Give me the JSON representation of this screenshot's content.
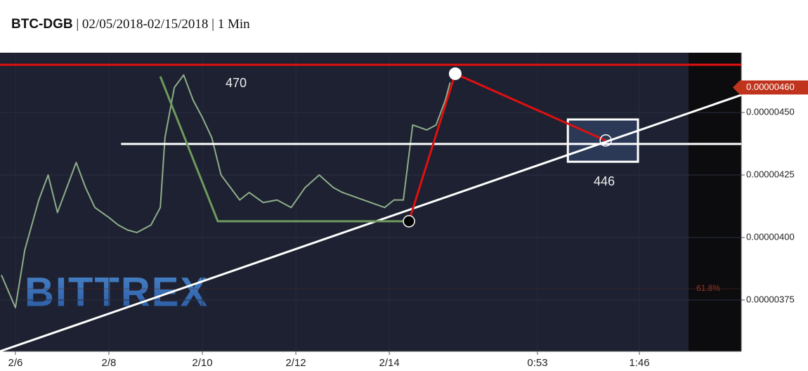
{
  "chart_data": {
    "type": "line",
    "title": {
      "symbol": "BTC-DGB",
      "range": "02/05/2018-02/15/2018",
      "interval": "1 Min"
    },
    "watermark": "BITTREX",
    "xlim": [
      5.67,
      21.53
    ],
    "xticks": [
      {
        "value": 6,
        "label": "2/6"
      },
      {
        "value": 8,
        "label": "2/8"
      },
      {
        "value": 10,
        "label": "2/10"
      },
      {
        "value": 12,
        "label": "2/12"
      },
      {
        "value": 14,
        "label": "2/14"
      },
      {
        "value": 17.17,
        "label": "0:53"
      },
      {
        "value": 19.35,
        "label": "1:46"
      }
    ],
    "ylim": [
      3.545e-07,
      4.739e-07
    ],
    "yticks": [
      {
        "value": 4.5e-07,
        "label": "0.00000450"
      },
      {
        "value": 4.25e-07,
        "label": "0.00000425"
      },
      {
        "value": 4e-07,
        "label": "0.00000400"
      },
      {
        "value": 3.75e-07,
        "label": "0.00000375"
      }
    ],
    "grid": true,
    "series": [
      {
        "name": "BTC-DGB",
        "color": "#8fae8a",
        "x": [
          5.7,
          6.0,
          6.2,
          6.5,
          6.7,
          6.9,
          7.1,
          7.3,
          7.5,
          7.7,
          8.0,
          8.2,
          8.4,
          8.6,
          8.9,
          9.1,
          9.2,
          9.4,
          9.6,
          9.8,
          10.0,
          10.2,
          10.4,
          10.6,
          10.8,
          11.0,
          11.3,
          11.6,
          11.9,
          12.2,
          12.5,
          12.8,
          13.0,
          13.3,
          13.6,
          13.9,
          14.1,
          14.3,
          14.4,
          14.5,
          14.8,
          15.0,
          15.2,
          15.3
        ],
        "values": [
          3.85e-07,
          3.72e-07,
          3.95e-07,
          4.15e-07,
          4.25e-07,
          4.1e-07,
          4.2e-07,
          4.3e-07,
          4.2e-07,
          4.12e-07,
          4.08e-07,
          4.05e-07,
          4.03e-07,
          4.02e-07,
          4.05e-07,
          4.12e-07,
          4.4e-07,
          4.6e-07,
          4.65e-07,
          4.55e-07,
          4.48e-07,
          4.4e-07,
          4.25e-07,
          4.2e-07,
          4.15e-07,
          4.18e-07,
          4.14e-07,
          4.15e-07,
          4.12e-07,
          4.2e-07,
          4.25e-07,
          4.2e-07,
          4.18e-07,
          4.16e-07,
          4.14e-07,
          4.12e-07,
          4.15e-07,
          4.15e-07,
          4.3e-07,
          4.45e-07,
          4.43e-07,
          4.45e-07,
          4.55e-07,
          4.62e-07
        ]
      }
    ],
    "last_price": {
      "value": 4.6e-07,
      "label": "0.00000460"
    },
    "drawings": [
      {
        "color": "#e01010",
        "x": [
          5.67,
          21.53
        ],
        "values": [
          4.691e-07,
          4.691e-07
        ]
      },
      {
        "color": "#ffffff",
        "x": [
          8.26,
          21.53
        ],
        "values": [
          4.374e-07,
          4.374e-07
        ]
      },
      {
        "color": "#ffffff",
        "x": [
          5.67,
          21.53
        ],
        "values": [
          3.545e-07,
          4.57e-07
        ]
      },
      {
        "color": "#6f9a5e",
        "x": [
          9.1,
          10.33,
          14.39
        ],
        "values": [
          4.644e-07,
          4.065e-07,
          4.065e-07
        ]
      },
      {
        "color": "#e01010",
        "x": [
          14.42,
          15.41,
          18.63
        ],
        "values": [
          4.065e-07,
          4.655e-07,
          4.388e-07
        ]
      }
    ],
    "box": {
      "x": [
        17.82,
        19.32
      ],
      "values": [
        4.472e-07,
        4.303e-07
      ]
    },
    "annotations": [
      "470",
      "446"
    ],
    "fib_label": "61.8%"
  }
}
